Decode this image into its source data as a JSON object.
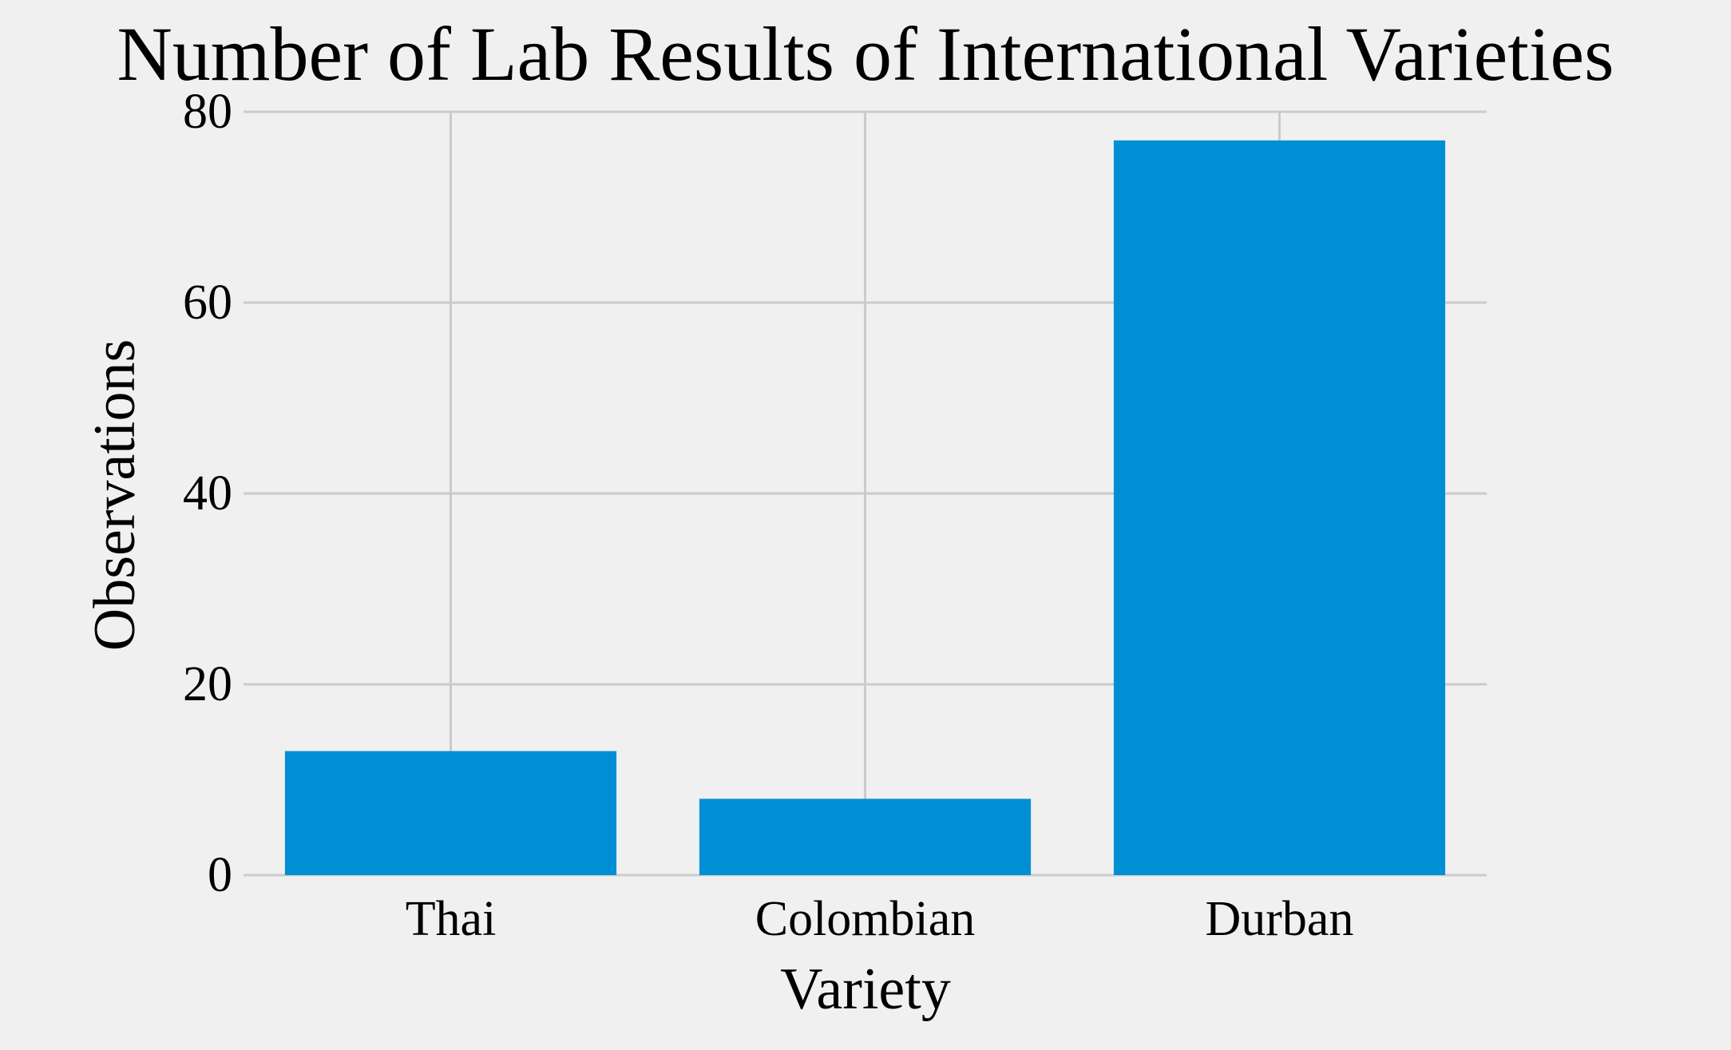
{
  "chart_data": {
    "type": "bar",
    "title": "Number of Lab Results of International Varieties",
    "xlabel": "Variety",
    "ylabel": "Observations",
    "categories": [
      "Thai",
      "Colombian",
      "Durban"
    ],
    "values": [
      13,
      8,
      77
    ],
    "ylim": [
      0,
      80
    ],
    "yticks": [
      0,
      20,
      40,
      60,
      80
    ],
    "grid": true,
    "colors": {
      "bar": "#008fd5",
      "background": "#f0f0f0",
      "grid": "#cbcbcb",
      "text": "#000000"
    }
  }
}
